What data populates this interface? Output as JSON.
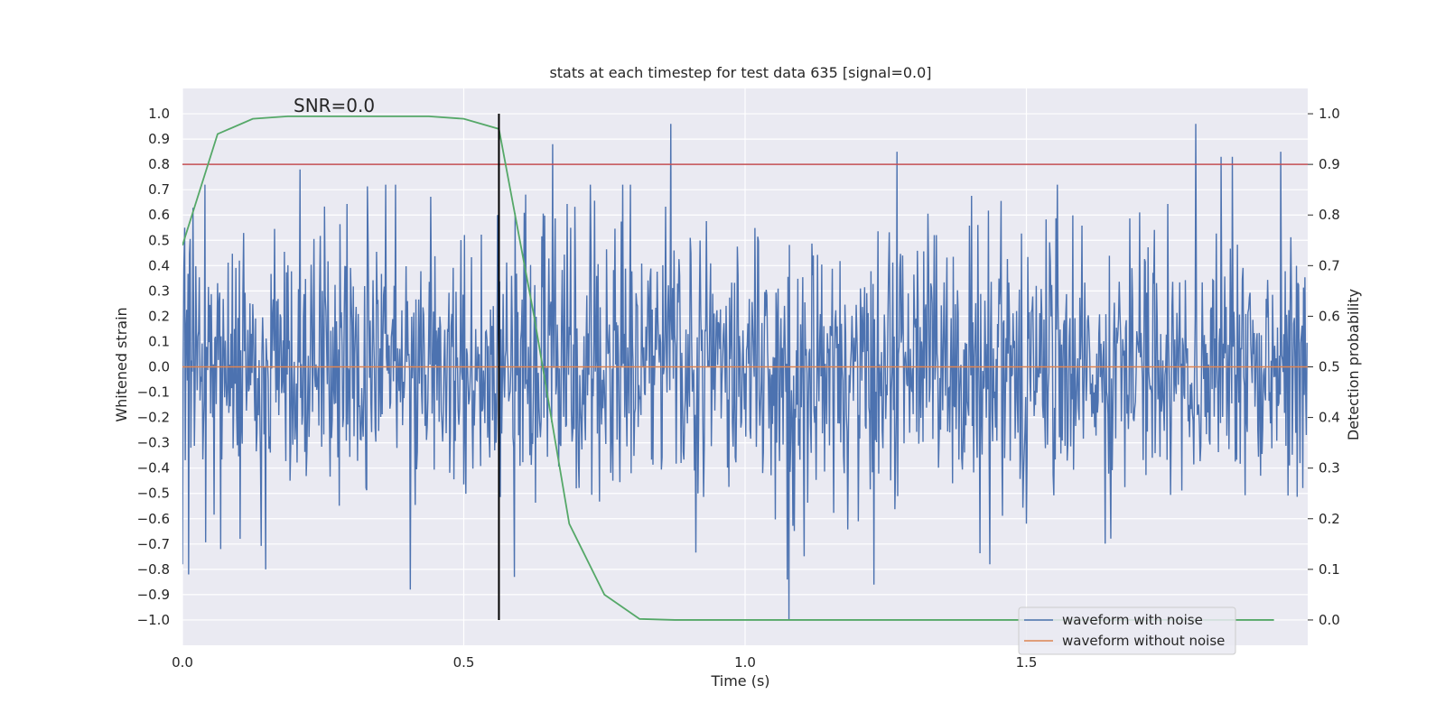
{
  "chart_data": {
    "type": "line",
    "title": "stats at each timestep for test data 635 [signal=0.0]",
    "xlabel": "Time (s)",
    "ylabel_left": "Whitened strain",
    "ylabel_right": "Detection probability",
    "xlim": [
      0.0,
      2.0
    ],
    "ylim_left": [
      -1.1,
      1.1
    ],
    "ylim_right": [
      -0.05,
      1.05
    ],
    "x_ticks": [
      "0.0",
      "0.5",
      "1.0",
      "1.5"
    ],
    "y_ticks_left": [
      "1.0",
      "0.9",
      "0.8",
      "0.7",
      "0.6",
      "0.5",
      "0.4",
      "0.3",
      "0.2",
      "0.1",
      "0.0",
      "−0.1",
      "−0.2",
      "−0.3",
      "−0.4",
      "−0.5",
      "−0.6",
      "−0.7",
      "−0.8",
      "−0.9",
      "−1.0"
    ],
    "y_ticks_right": [
      "1.0",
      "0.9",
      "0.8",
      "0.7",
      "0.6",
      "0.5",
      "0.4",
      "0.3",
      "0.2",
      "0.1",
      "0.0"
    ],
    "grid": true,
    "legend_position": "bottom-right",
    "annotation": "SNR=0.0",
    "series": [
      {
        "name": "waveform with noise",
        "color": "#4c72b0",
        "axis": "left",
        "note": "dense noisy signal ~1600 samples, amplitude roughly within [-1.0, 0.96]",
        "peaks": [
          {
            "x": 0.004,
            "y": 0.55
          },
          {
            "x": 0.011,
            "y": -0.82
          },
          {
            "x": 0.04,
            "y": 0.72
          },
          {
            "x": 0.068,
            "y": -0.72
          },
          {
            "x": 0.148,
            "y": -0.8
          },
          {
            "x": 0.209,
            "y": 0.78
          },
          {
            "x": 0.405,
            "y": -0.88
          },
          {
            "x": 0.56,
            "y": 0.6
          },
          {
            "x": 0.59,
            "y": -0.83
          },
          {
            "x": 0.658,
            "y": 0.88
          },
          {
            "x": 0.868,
            "y": 0.96
          },
          {
            "x": 1.075,
            "y": -0.84
          },
          {
            "x": 1.078,
            "y": -1.0
          },
          {
            "x": 1.229,
            "y": -0.86
          },
          {
            "x": 1.27,
            "y": 0.85
          },
          {
            "x": 1.801,
            "y": 0.96
          },
          {
            "x": 1.846,
            "y": 0.83
          },
          {
            "x": 1.866,
            "y": 0.83
          },
          {
            "x": 1.952,
            "y": 0.85
          }
        ]
      },
      {
        "name": "waveform without noise",
        "color": "#dd8452",
        "axis": "left",
        "x": [
          0.0,
          2.0
        ],
        "y": [
          0.0,
          0.0
        ]
      },
      {
        "name": "",
        "color": "#55a868",
        "axis": "right",
        "x": [
          0.0,
          0.0625,
          0.125,
          0.1875,
          0.25,
          0.3125,
          0.375,
          0.4375,
          0.5,
          0.5625,
          0.625,
          0.6875,
          0.75,
          0.8125,
          0.875,
          0.9375,
          1.0,
          1.25,
          1.5,
          1.75,
          1.94
        ],
        "y": [
          0.74,
          0.96,
          0.99,
          0.995,
          0.995,
          0.995,
          0.995,
          0.995,
          0.99,
          0.97,
          0.6,
          0.19,
          0.05,
          0.002,
          0.0,
          0.0,
          0.0,
          0.0,
          0.0,
          0.0,
          0.0
        ]
      }
    ],
    "lines": [
      {
        "orientation": "horizontal",
        "axis": "right",
        "value": 0.9,
        "color": "#c44e52"
      },
      {
        "orientation": "vertical",
        "value": 0.5625,
        "ymin": -1.0,
        "ymax": 1.0,
        "color": "#000000"
      }
    ]
  }
}
